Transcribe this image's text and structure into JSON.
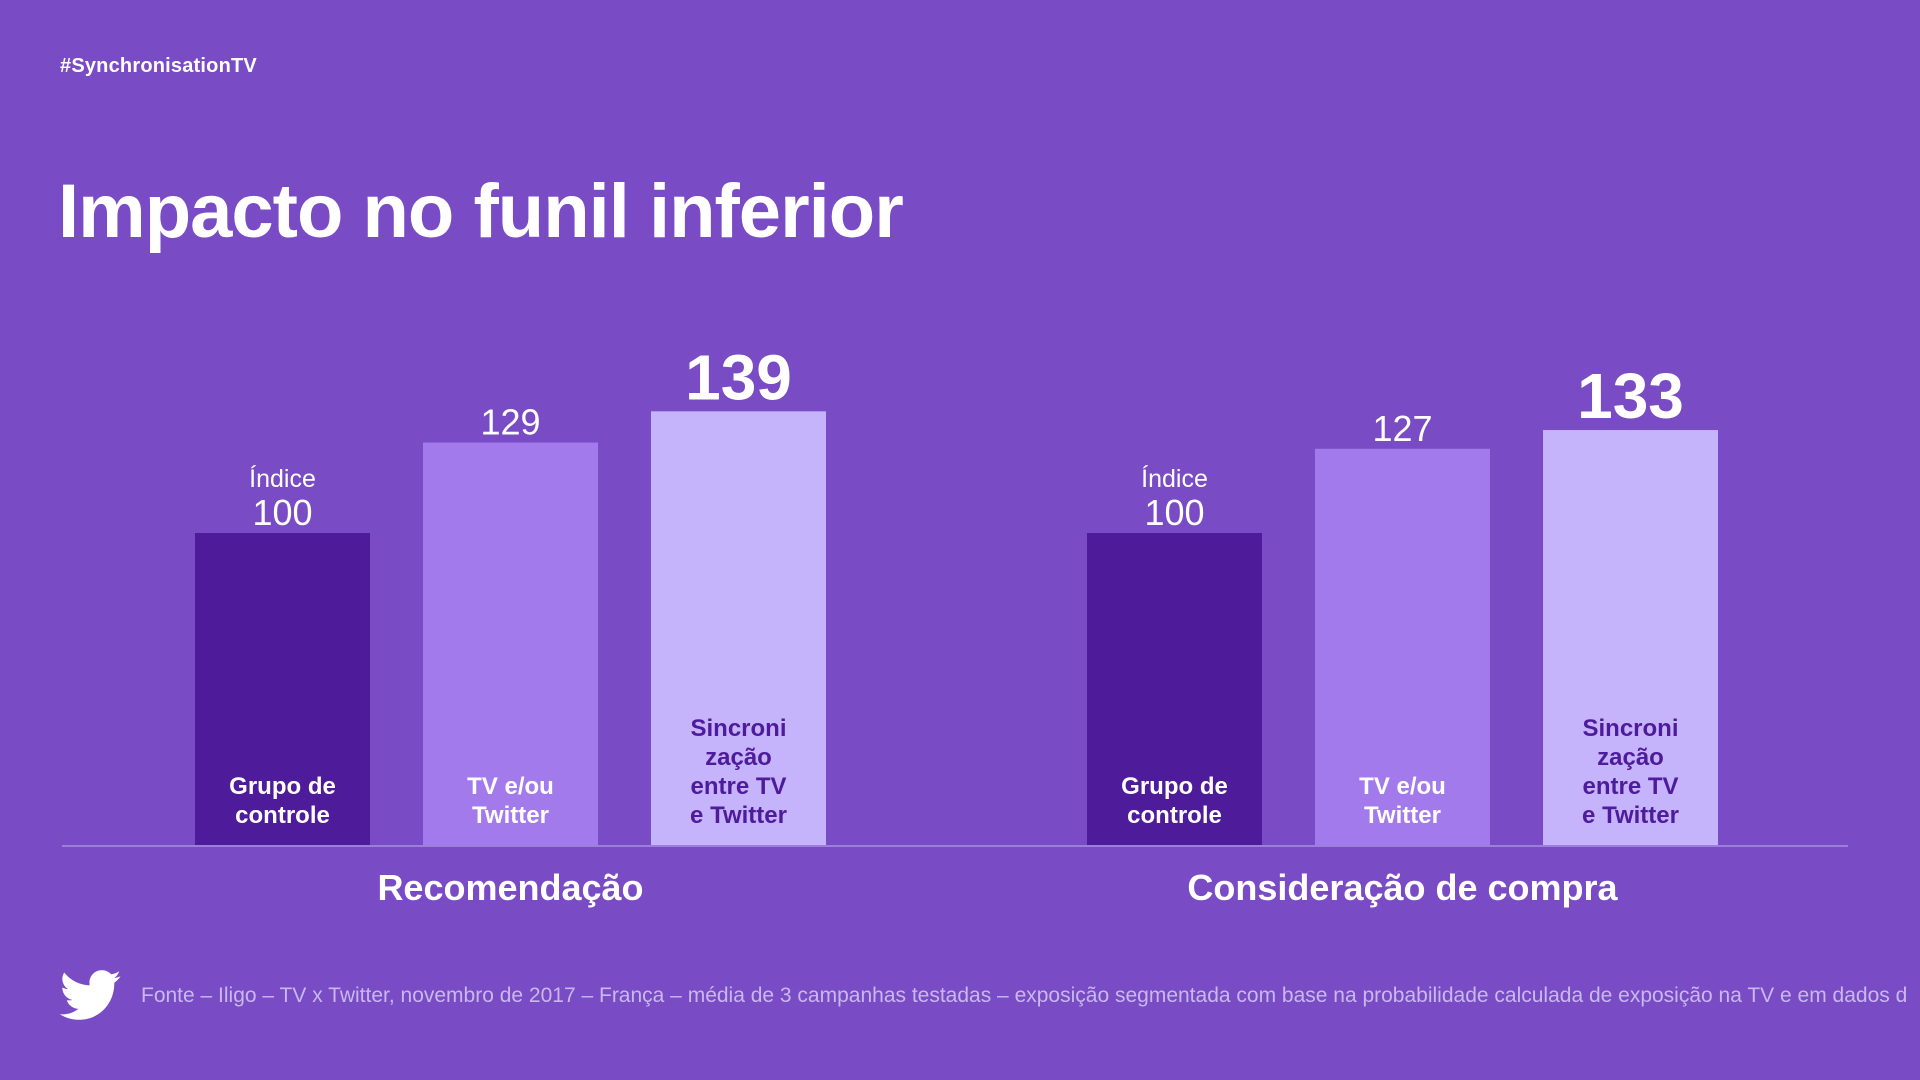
{
  "hashtag": "#SynchronisationTV",
  "title": "Impacto no funil inferior",
  "footer": {
    "icon": "twitter-bird-icon",
    "source": "Fonte – Iligo – TV x Twitter, novembro de 2017 – França – média de 3 campanhas testadas – exposição segmentada com base na probabilidade calculada de exposição na TV e em dados d"
  },
  "colors": {
    "background": "#794BC4",
    "control": "#4E1B9B",
    "tv_or_twitter": "#A27AEC",
    "sync": "#C5B3FB",
    "axis": "#9C7FDC",
    "dark_label": "#4E1B9B",
    "footer_text": "#C9B8EE"
  },
  "chart_data": [
    {
      "type": "bar",
      "group_label": "Recomendação",
      "index_label": "Índice",
      "categories": [
        "Grupo de controle",
        "TV e/ou Twitter",
        "Sincronização entre TV e Twitter"
      ],
      "category_lines": [
        [
          "Grupo de",
          "controle"
        ],
        [
          "TV e/ou",
          "Twitter"
        ],
        [
          "Sincroni",
          "zação",
          "entre TV",
          "e Twitter"
        ]
      ],
      "values": [
        100,
        129,
        139
      ],
      "highlight_index": 2
    },
    {
      "type": "bar",
      "group_label": "Consideração de compra",
      "index_label": "Índice",
      "categories": [
        "Grupo de controle",
        "TV e/ou Twitter",
        "Sincronização entre TV e Twitter"
      ],
      "category_lines": [
        [
          "Grupo de",
          "controle"
        ],
        [
          "TV e/ou",
          "Twitter"
        ],
        [
          "Sincroni",
          "zação",
          "entre TV",
          "e Twitter"
        ]
      ],
      "values": [
        100,
        127,
        133
      ],
      "highlight_index": 2
    }
  ]
}
